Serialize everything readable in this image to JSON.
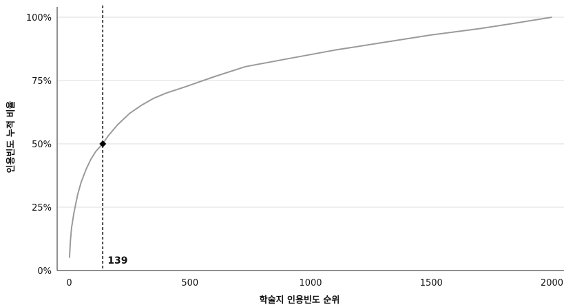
{
  "chart_data": {
    "type": "line",
    "xlabel": "학술지 인용빈도 순위",
    "ylabel": "인용빈도 누적 비율",
    "xlim": [
      -50,
      2050
    ],
    "ylim": [
      0,
      100
    ],
    "x_ticks": [
      0,
      500,
      1000,
      1500,
      2000
    ],
    "x_tick_labels": [
      "0",
      "500",
      "1000",
      "1500",
      "2000"
    ],
    "y_ticks": [
      0,
      25,
      50,
      75,
      100
    ],
    "y_tick_labels": [
      "0%",
      "25%",
      "50%",
      "75%",
      "100%"
    ],
    "grid": "horizontal",
    "series": [
      {
        "color": "#9a9a9a",
        "x": [
          1,
          5,
          10,
          20,
          35,
          50,
          70,
          90,
          110,
          125,
          139,
          160,
          200,
          250,
          300,
          350,
          400,
          480,
          600,
          730,
          900,
          1100,
          1300,
          1500,
          1700,
          1850,
          2000
        ],
        "y": [
          5,
          12,
          17,
          23,
          30,
          35,
          40,
          44,
          47,
          48.6,
          50,
          53,
          57.5,
          62,
          65.3,
          68,
          70,
          72.5,
          76.5,
          80.5,
          83.5,
          87,
          90,
          93,
          95.5,
          97.7,
          100
        ]
      }
    ],
    "annotations": [
      {
        "type": "vline",
        "x": 139,
        "style": "dashed",
        "color": "#000000",
        "label": "139"
      },
      {
        "type": "point",
        "x": 139,
        "y": 50,
        "shape": "diamond",
        "color": "#000000"
      }
    ]
  }
}
